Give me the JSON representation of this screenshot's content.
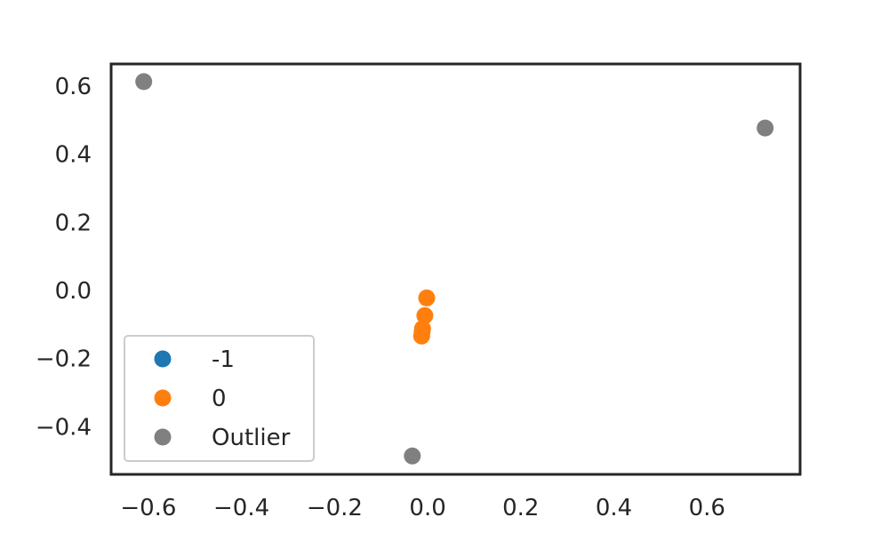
{
  "chart_data": {
    "type": "scatter",
    "title": "",
    "xlabel": "",
    "ylabel": "",
    "xlim": [
      -0.68,
      0.8
    ],
    "ylim": [
      -0.54,
      0.665
    ],
    "xticks": [
      -0.6,
      -0.4,
      -0.2,
      0.0,
      0.2,
      0.4,
      0.6
    ],
    "xtick_labels": [
      "−0.6",
      "−0.4",
      "−0.2",
      "0.0",
      "0.2",
      "0.4",
      "0.6"
    ],
    "yticks": [
      -0.4,
      -0.2,
      0.0,
      0.2,
      0.4,
      0.6
    ],
    "ytick_labels": [
      "−0.4",
      "−0.2",
      "0.0",
      "0.2",
      "0.4",
      "0.6"
    ],
    "grid": false,
    "legend": "lower-left",
    "series": [
      {
        "name": "-1",
        "color": "#1f77b4",
        "points": []
      },
      {
        "name": "0",
        "color": "#ff7f0e",
        "points": [
          [
            -0.002,
            -0.022
          ],
          [
            -0.006,
            -0.074
          ],
          [
            -0.011,
            -0.112
          ],
          [
            -0.012,
            -0.122
          ],
          [
            -0.013,
            -0.134
          ]
        ]
      },
      {
        "name": "Outlier",
        "color": "#808080",
        "points": [
          [
            -0.61,
            0.613
          ],
          [
            0.725,
            0.477
          ],
          [
            -0.033,
            -0.486
          ]
        ]
      }
    ]
  }
}
